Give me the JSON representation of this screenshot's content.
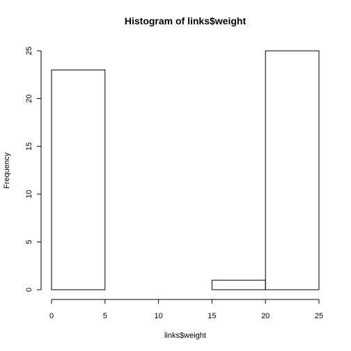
{
  "chart_data": {
    "type": "bar",
    "title": "Histogram of links$weight",
    "xlabel": "links$weight",
    "ylabel": "Frequency",
    "bins": [
      {
        "start": 0,
        "end": 5,
        "value": 23
      },
      {
        "start": 5,
        "end": 10,
        "value": 0
      },
      {
        "start": 10,
        "end": 15,
        "value": 0
      },
      {
        "start": 15,
        "end": 20,
        "value": 1
      },
      {
        "start": 20,
        "end": 25,
        "value": 25
      }
    ],
    "xlim": [
      0,
      25
    ],
    "ylim": [
      0,
      25
    ],
    "xticks": [
      "0",
      "5",
      "10",
      "15",
      "20",
      "25"
    ],
    "yticks": [
      "0",
      "5",
      "10",
      "15",
      "20",
      "25"
    ],
    "grid": false,
    "legend": "none"
  }
}
